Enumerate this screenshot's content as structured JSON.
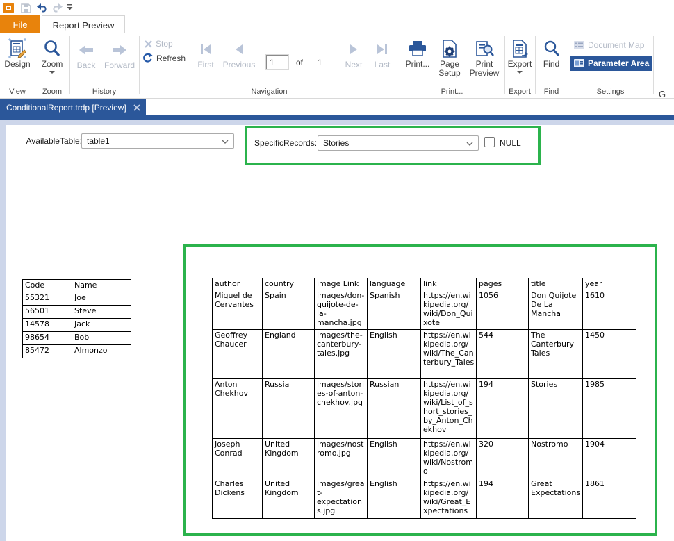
{
  "colors": {
    "accent_blue": "#2B579A",
    "file_orange": "#E8830C",
    "highlight_green": "#2BB34C",
    "surface_lavender": "#CDD6EA"
  },
  "ribbon": {
    "file_tab_label": "File",
    "preview_tab_label": "Report Preview",
    "design_label": "Design",
    "zoom_label": "Zoom",
    "back_label": "Back",
    "forward_label": "Forward",
    "stop_label": "Stop",
    "refresh_label": "Refresh",
    "first_label": "First",
    "previous_label": "Previous",
    "page_value": "1",
    "of_label": "of",
    "total_pages": "1",
    "next_label": "Next",
    "last_label": "Last",
    "print_label": "Print...",
    "page_setup_label": "Page Setup",
    "print_preview_label": "Print Preview",
    "export_label": "Export",
    "find_label": "Find",
    "document_map_label": "Document Map",
    "parameter_area_label": "Parameter Area",
    "overflow_text": "G",
    "group_labels": {
      "view": "View",
      "zoom": "Zoom",
      "history": "History",
      "navigation": "Navigation",
      "print": "Print...",
      "export": "Export",
      "find": "Find",
      "settings": "Settings"
    }
  },
  "document_tab": {
    "title": "ConditionalReport.trdp [Preview]"
  },
  "parameters": {
    "available_table": {
      "label": "AvailableTable:",
      "value": "table1"
    },
    "specific_records": {
      "label": "SpecificRecords:",
      "value": "Stories",
      "null_label": "NULL",
      "null_checked": false
    }
  },
  "report": {
    "codes_table": {
      "headers": [
        "Code",
        "Name"
      ],
      "rows": [
        [
          "55321",
          "Joe"
        ],
        [
          "56501",
          "Steve"
        ],
        [
          "14578",
          "Jack"
        ],
        [
          "98654",
          "Bob"
        ],
        [
          "85472",
          "Almonzo"
        ]
      ]
    },
    "books_table": {
      "headers": [
        "author",
        "country",
        "image Link",
        "language",
        "link",
        "pages",
        "title",
        "year"
      ],
      "rows": [
        [
          "Miguel de Cervantes",
          "Spain",
          "images/don-quijote-de-la-mancha.jpg",
          "Spanish",
          "https://en.wikipedia.org/wiki/Don_Quixote",
          "1056",
          "Don Quijote De La Mancha",
          "1610"
        ],
        [
          "Geoffrey Chaucer",
          "England",
          "images/the-canterbury-tales.jpg",
          "English",
          "https://en.wikipedia.org/wiki/The_Canterbury_Tales",
          "544",
          "The Canterbury Tales",
          "1450"
        ],
        [
          "Anton Chekhov",
          "Russia",
          "images/stories-of-anton-chekhov.jpg",
          "Russian",
          "https://en.wikipedia.org/wiki/List_of_short_stories_by_Anton_Chekhov",
          "194",
          "Stories",
          "1985"
        ],
        [
          "Joseph Conrad",
          "United Kingdom",
          "images/nostromo.jpg",
          "English",
          "https://en.wikipedia.org/wiki/Nostromo",
          "320",
          "Nostromo",
          "1904"
        ],
        [
          "Charles Dickens",
          "United Kingdom",
          "images/great-expectations.jpg",
          "English",
          "https://en.wikipedia.org/wiki/Great_Expectations",
          "194",
          "Great Expectations",
          "1861"
        ]
      ]
    }
  }
}
